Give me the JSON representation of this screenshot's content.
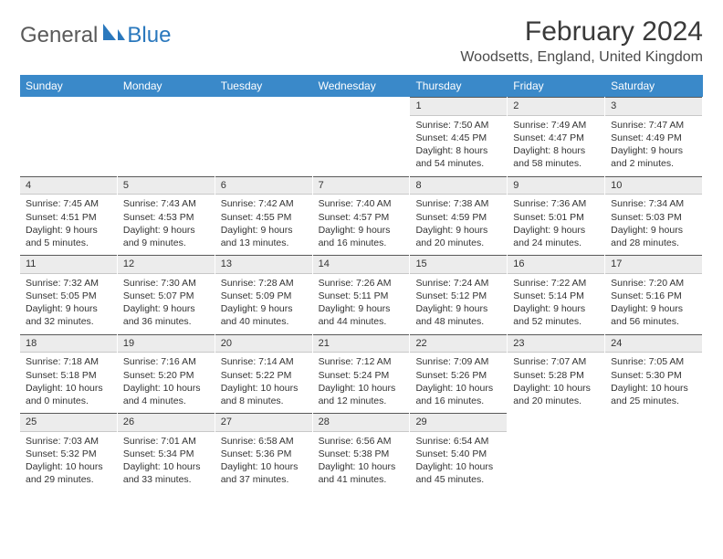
{
  "brand": {
    "general": "General",
    "blue": "Blue"
  },
  "title": {
    "month": "February 2024",
    "location": "Woodsetts, England, United Kingdom"
  },
  "colors": {
    "header_bg": "#3a89c9",
    "header_text": "#ffffff",
    "daynum_bg": "#ececec",
    "daynum_border_top": "#5a5a5a",
    "text": "#333333",
    "brand_gray": "#5a5a5a",
    "brand_blue": "#2a78bd"
  },
  "day_headers": [
    "Sunday",
    "Monday",
    "Tuesday",
    "Wednesday",
    "Thursday",
    "Friday",
    "Saturday"
  ],
  "weeks": [
    [
      {
        "empty": true
      },
      {
        "empty": true
      },
      {
        "empty": true
      },
      {
        "empty": true
      },
      {
        "n": "1",
        "sunrise": "Sunrise: 7:50 AM",
        "sunset": "Sunset: 4:45 PM",
        "daylight1": "Daylight: 8 hours",
        "daylight2": "and 54 minutes."
      },
      {
        "n": "2",
        "sunrise": "Sunrise: 7:49 AM",
        "sunset": "Sunset: 4:47 PM",
        "daylight1": "Daylight: 8 hours",
        "daylight2": "and 58 minutes."
      },
      {
        "n": "3",
        "sunrise": "Sunrise: 7:47 AM",
        "sunset": "Sunset: 4:49 PM",
        "daylight1": "Daylight: 9 hours",
        "daylight2": "and 2 minutes."
      }
    ],
    [
      {
        "n": "4",
        "sunrise": "Sunrise: 7:45 AM",
        "sunset": "Sunset: 4:51 PM",
        "daylight1": "Daylight: 9 hours",
        "daylight2": "and 5 minutes."
      },
      {
        "n": "5",
        "sunrise": "Sunrise: 7:43 AM",
        "sunset": "Sunset: 4:53 PM",
        "daylight1": "Daylight: 9 hours",
        "daylight2": "and 9 minutes."
      },
      {
        "n": "6",
        "sunrise": "Sunrise: 7:42 AM",
        "sunset": "Sunset: 4:55 PM",
        "daylight1": "Daylight: 9 hours",
        "daylight2": "and 13 minutes."
      },
      {
        "n": "7",
        "sunrise": "Sunrise: 7:40 AM",
        "sunset": "Sunset: 4:57 PM",
        "daylight1": "Daylight: 9 hours",
        "daylight2": "and 16 minutes."
      },
      {
        "n": "8",
        "sunrise": "Sunrise: 7:38 AM",
        "sunset": "Sunset: 4:59 PM",
        "daylight1": "Daylight: 9 hours",
        "daylight2": "and 20 minutes."
      },
      {
        "n": "9",
        "sunrise": "Sunrise: 7:36 AM",
        "sunset": "Sunset: 5:01 PM",
        "daylight1": "Daylight: 9 hours",
        "daylight2": "and 24 minutes."
      },
      {
        "n": "10",
        "sunrise": "Sunrise: 7:34 AM",
        "sunset": "Sunset: 5:03 PM",
        "daylight1": "Daylight: 9 hours",
        "daylight2": "and 28 minutes."
      }
    ],
    [
      {
        "n": "11",
        "sunrise": "Sunrise: 7:32 AM",
        "sunset": "Sunset: 5:05 PM",
        "daylight1": "Daylight: 9 hours",
        "daylight2": "and 32 minutes."
      },
      {
        "n": "12",
        "sunrise": "Sunrise: 7:30 AM",
        "sunset": "Sunset: 5:07 PM",
        "daylight1": "Daylight: 9 hours",
        "daylight2": "and 36 minutes."
      },
      {
        "n": "13",
        "sunrise": "Sunrise: 7:28 AM",
        "sunset": "Sunset: 5:09 PM",
        "daylight1": "Daylight: 9 hours",
        "daylight2": "and 40 minutes."
      },
      {
        "n": "14",
        "sunrise": "Sunrise: 7:26 AM",
        "sunset": "Sunset: 5:11 PM",
        "daylight1": "Daylight: 9 hours",
        "daylight2": "and 44 minutes."
      },
      {
        "n": "15",
        "sunrise": "Sunrise: 7:24 AM",
        "sunset": "Sunset: 5:12 PM",
        "daylight1": "Daylight: 9 hours",
        "daylight2": "and 48 minutes."
      },
      {
        "n": "16",
        "sunrise": "Sunrise: 7:22 AM",
        "sunset": "Sunset: 5:14 PM",
        "daylight1": "Daylight: 9 hours",
        "daylight2": "and 52 minutes."
      },
      {
        "n": "17",
        "sunrise": "Sunrise: 7:20 AM",
        "sunset": "Sunset: 5:16 PM",
        "daylight1": "Daylight: 9 hours",
        "daylight2": "and 56 minutes."
      }
    ],
    [
      {
        "n": "18",
        "sunrise": "Sunrise: 7:18 AM",
        "sunset": "Sunset: 5:18 PM",
        "daylight1": "Daylight: 10 hours",
        "daylight2": "and 0 minutes."
      },
      {
        "n": "19",
        "sunrise": "Sunrise: 7:16 AM",
        "sunset": "Sunset: 5:20 PM",
        "daylight1": "Daylight: 10 hours",
        "daylight2": "and 4 minutes."
      },
      {
        "n": "20",
        "sunrise": "Sunrise: 7:14 AM",
        "sunset": "Sunset: 5:22 PM",
        "daylight1": "Daylight: 10 hours",
        "daylight2": "and 8 minutes."
      },
      {
        "n": "21",
        "sunrise": "Sunrise: 7:12 AM",
        "sunset": "Sunset: 5:24 PM",
        "daylight1": "Daylight: 10 hours",
        "daylight2": "and 12 minutes."
      },
      {
        "n": "22",
        "sunrise": "Sunrise: 7:09 AM",
        "sunset": "Sunset: 5:26 PM",
        "daylight1": "Daylight: 10 hours",
        "daylight2": "and 16 minutes."
      },
      {
        "n": "23",
        "sunrise": "Sunrise: 7:07 AM",
        "sunset": "Sunset: 5:28 PM",
        "daylight1": "Daylight: 10 hours",
        "daylight2": "and 20 minutes."
      },
      {
        "n": "24",
        "sunrise": "Sunrise: 7:05 AM",
        "sunset": "Sunset: 5:30 PM",
        "daylight1": "Daylight: 10 hours",
        "daylight2": "and 25 minutes."
      }
    ],
    [
      {
        "n": "25",
        "sunrise": "Sunrise: 7:03 AM",
        "sunset": "Sunset: 5:32 PM",
        "daylight1": "Daylight: 10 hours",
        "daylight2": "and 29 minutes."
      },
      {
        "n": "26",
        "sunrise": "Sunrise: 7:01 AM",
        "sunset": "Sunset: 5:34 PM",
        "daylight1": "Daylight: 10 hours",
        "daylight2": "and 33 minutes."
      },
      {
        "n": "27",
        "sunrise": "Sunrise: 6:58 AM",
        "sunset": "Sunset: 5:36 PM",
        "daylight1": "Daylight: 10 hours",
        "daylight2": "and 37 minutes."
      },
      {
        "n": "28",
        "sunrise": "Sunrise: 6:56 AM",
        "sunset": "Sunset: 5:38 PM",
        "daylight1": "Daylight: 10 hours",
        "daylight2": "and 41 minutes."
      },
      {
        "n": "29",
        "sunrise": "Sunrise: 6:54 AM",
        "sunset": "Sunset: 5:40 PM",
        "daylight1": "Daylight: 10 hours",
        "daylight2": "and 45 minutes."
      },
      {
        "empty": true
      },
      {
        "empty": true
      }
    ]
  ]
}
